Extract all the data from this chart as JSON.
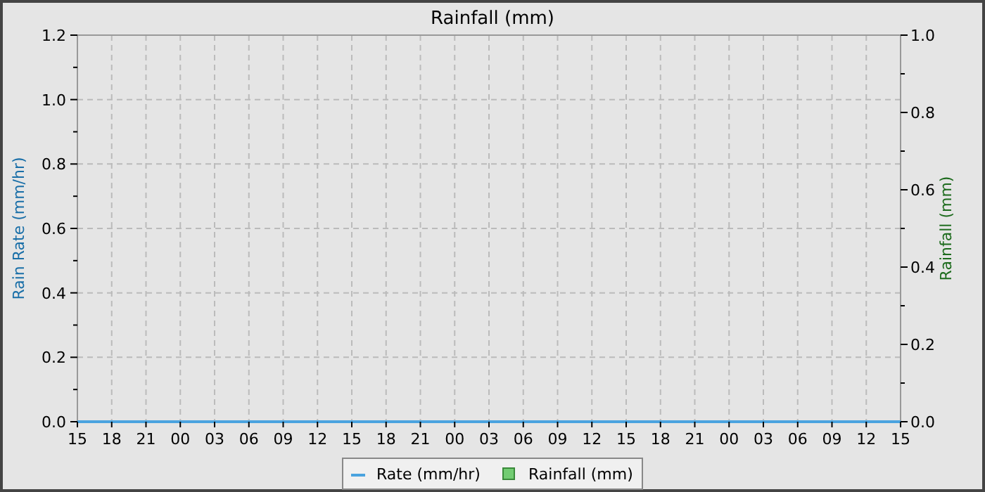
{
  "chart_data": {
    "type": "line",
    "title": "Rainfall (mm)",
    "ylabel": "Rain Rate (mm/hr)",
    "y2label": "Rainfall (mm)",
    "categories": [
      "15",
      "18",
      "21",
      "00",
      "03",
      "06",
      "09",
      "12",
      "15",
      "18",
      "21",
      "00",
      "03",
      "06",
      "09",
      "12",
      "15",
      "18",
      "21",
      "00",
      "03",
      "06",
      "09",
      "12",
      "15"
    ],
    "ylim": [
      0,
      1.2
    ],
    "yticks": [
      {
        "value": 0,
        "label": "0.0"
      },
      {
        "value": 0.1,
        "label": null
      },
      {
        "value": 0.2,
        "label": "0.2"
      },
      {
        "value": 0.3,
        "label": null
      },
      {
        "value": 0.4,
        "label": "0.4"
      },
      {
        "value": 0.5,
        "label": null
      },
      {
        "value": 0.6,
        "label": "0.6"
      },
      {
        "value": 0.7,
        "label": null
      },
      {
        "value": 0.8,
        "label": "0.8"
      },
      {
        "value": 0.9,
        "label": null
      },
      {
        "value": 1,
        "label": "1.0"
      },
      {
        "value": 1.1,
        "label": null
      },
      {
        "value": 1.2,
        "label": "1.2"
      }
    ],
    "y2lim": [
      0,
      1
    ],
    "y2ticks": [
      {
        "value": 0,
        "label": "0.0"
      },
      {
        "value": 0.1,
        "label": null
      },
      {
        "value": 0.2,
        "label": "0.2"
      },
      {
        "value": 0.3,
        "label": null
      },
      {
        "value": 0.4,
        "label": "0.4"
      },
      {
        "value": 0.5,
        "label": null
      },
      {
        "value": 0.6,
        "label": "0.6"
      },
      {
        "value": 0.7,
        "label": null
      },
      {
        "value": 0.8,
        "label": "0.8"
      },
      {
        "value": 0.9,
        "label": null
      },
      {
        "value": 1,
        "label": "1.0"
      }
    ],
    "series": [
      {
        "name": "Rate (mm/hr)",
        "color": "#4aa3df",
        "values": [
          0,
          0,
          0,
          0,
          0,
          0,
          0,
          0,
          0,
          0,
          0,
          0,
          0,
          0,
          0,
          0,
          0,
          0,
          0,
          0,
          0,
          0,
          0,
          0,
          0
        ]
      },
      {
        "name": "Rainfall (mm)",
        "type": "bar",
        "axis": "y2",
        "color": "#72cc72",
        "values": [
          0,
          0,
          0,
          0,
          0,
          0,
          0,
          0,
          0,
          0,
          0,
          0,
          0,
          0,
          0,
          0,
          0,
          0,
          0,
          0,
          0,
          0,
          0,
          0,
          0
        ]
      }
    ],
    "grid": true,
    "legend": "bottom",
    "marker": "none",
    "line_style": "solid"
  }
}
